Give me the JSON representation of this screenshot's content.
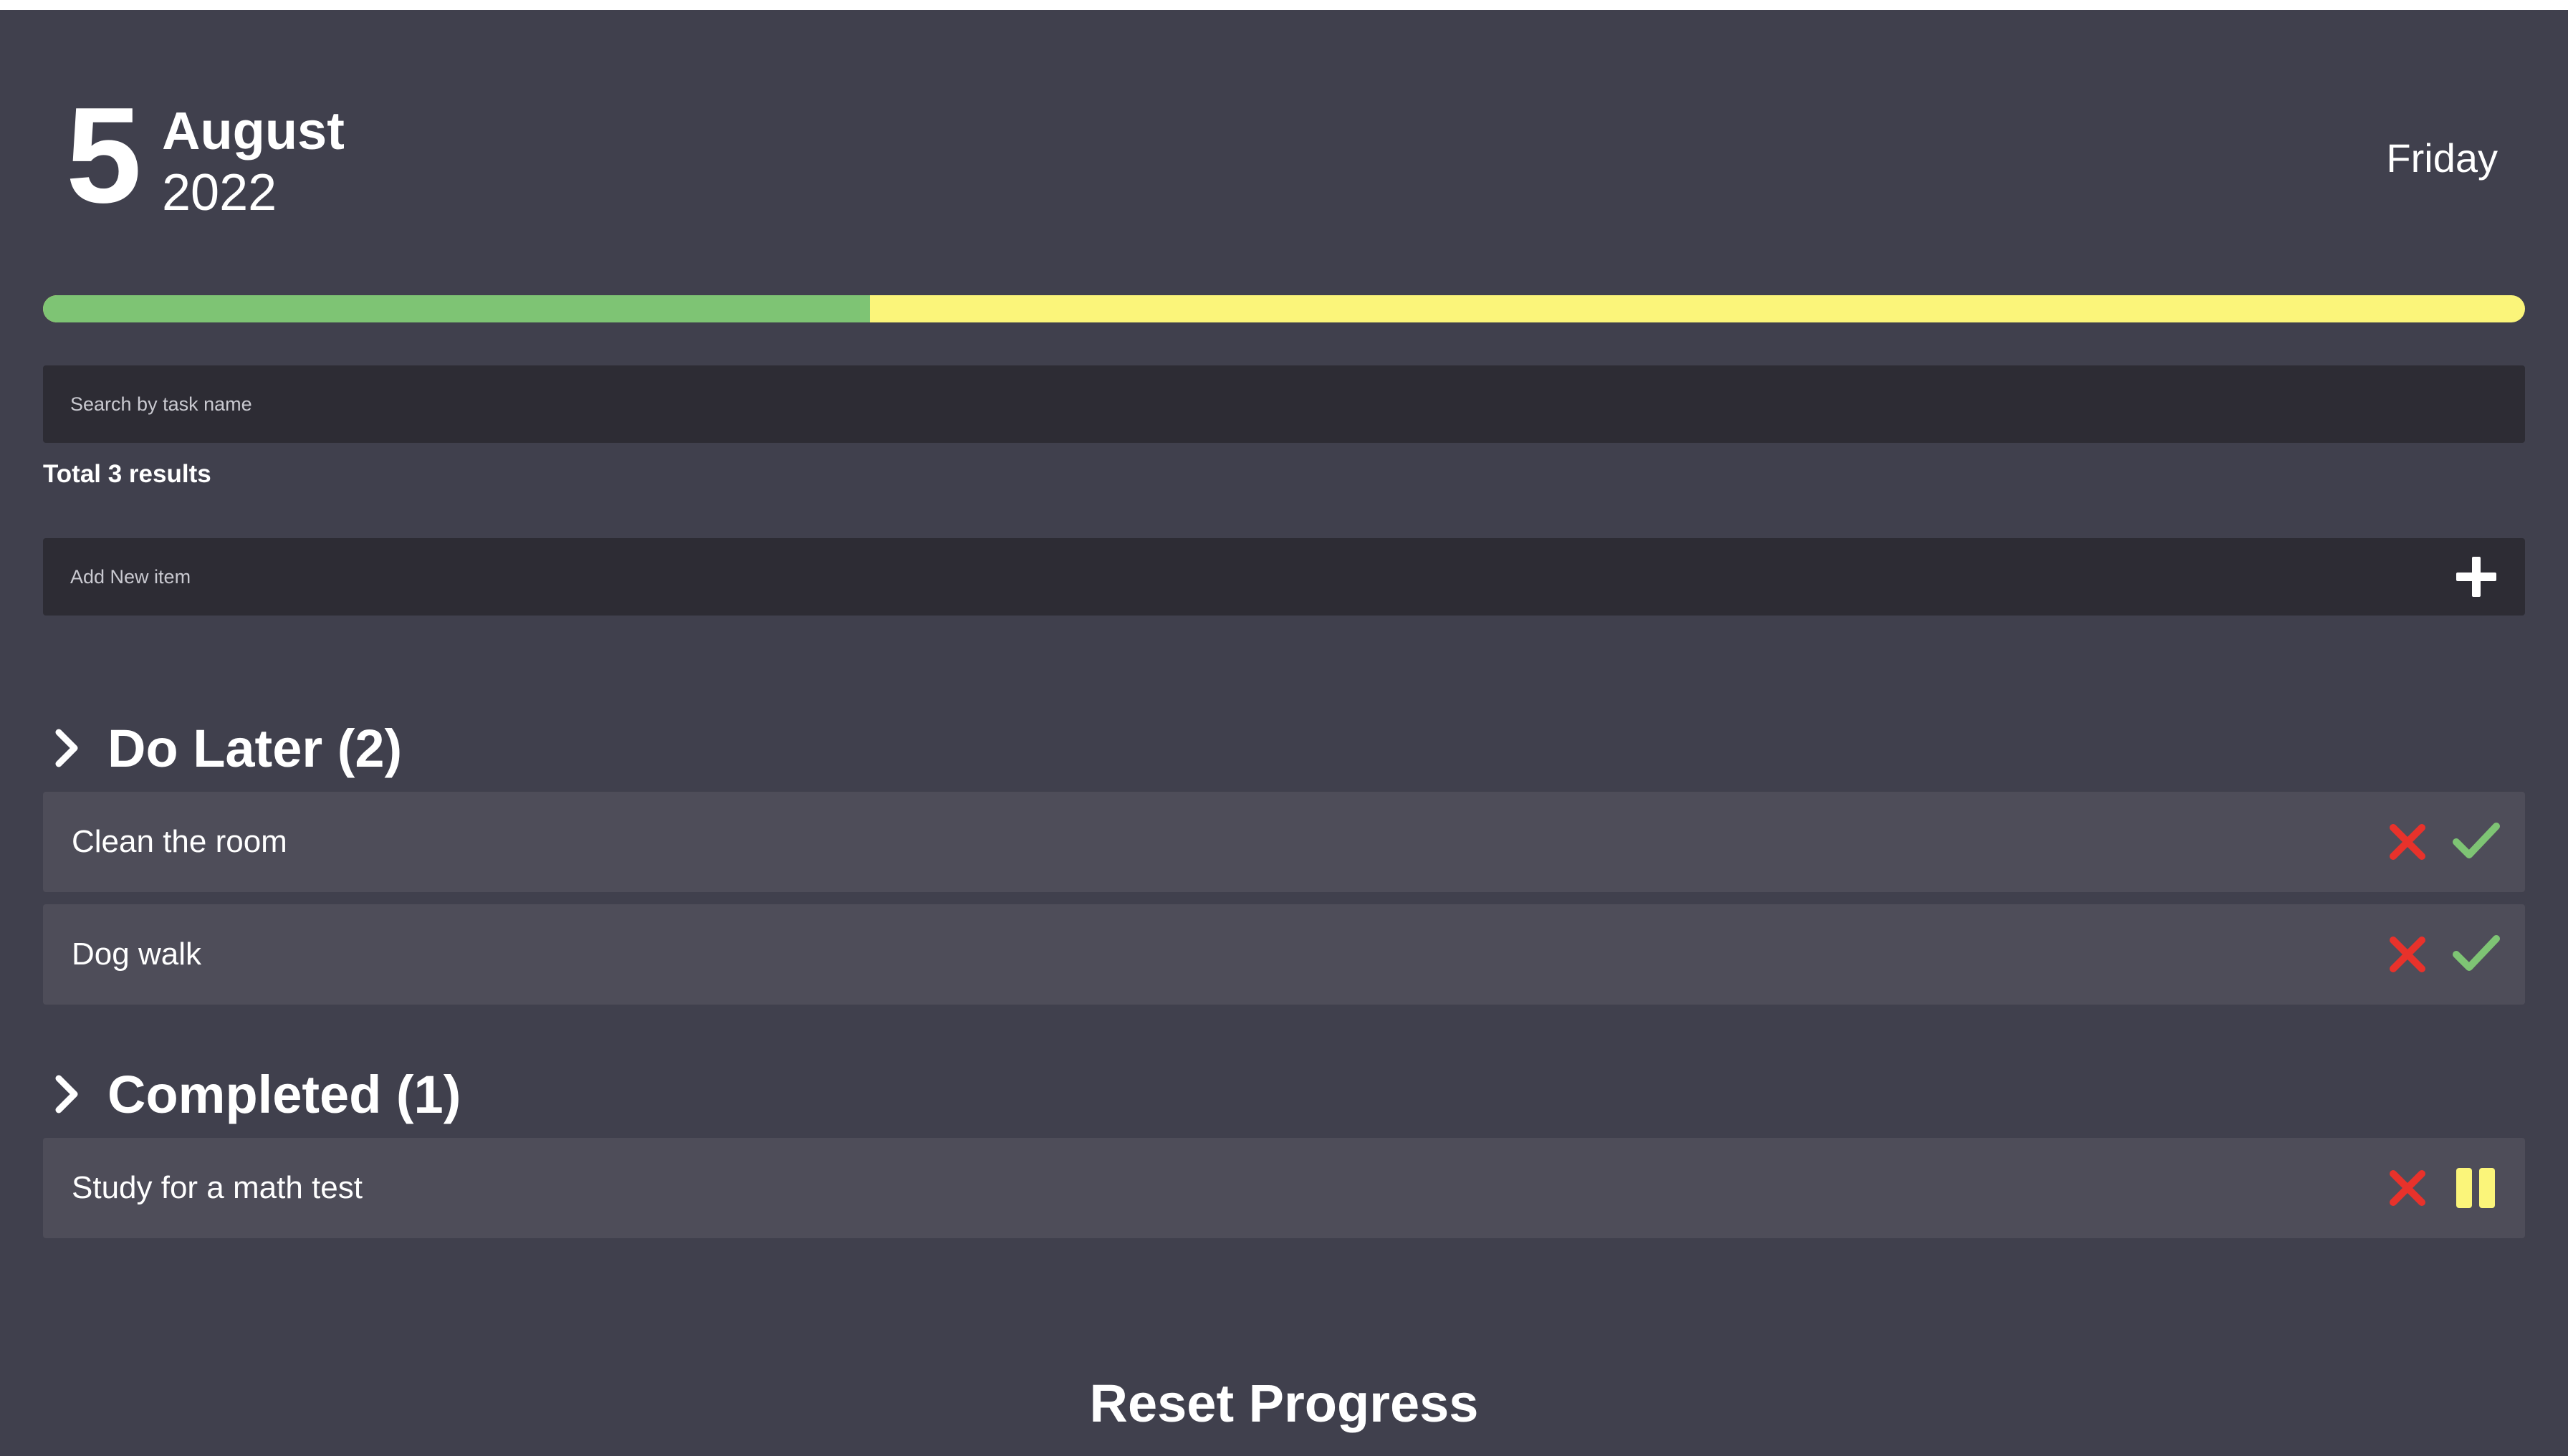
{
  "header": {
    "day": "5",
    "month": "August",
    "year": "2022",
    "weekday": "Friday"
  },
  "progress": {
    "completed_fraction": 0.333,
    "completed_color": "#7ec474",
    "remaining_color": "#fbf57a"
  },
  "search": {
    "placeholder": "Search by task name",
    "value": ""
  },
  "results": {
    "label": "Total 3 results"
  },
  "add_item": {
    "placeholder": "Add New item",
    "value": "",
    "button_icon": "plus-icon"
  },
  "sections": {
    "do_later": {
      "title": "Do Later (2)",
      "icon": "chevron-right-icon",
      "tasks": [
        {
          "label": "Clean the room",
          "actions": [
            "delete-icon",
            "check-icon"
          ]
        },
        {
          "label": "Dog walk",
          "actions": [
            "delete-icon",
            "check-icon"
          ]
        }
      ]
    },
    "completed": {
      "title": "Completed (1)",
      "icon": "chevron-right-icon",
      "tasks": [
        {
          "label": "Study for a math test",
          "actions": [
            "delete-icon",
            "pause-icon"
          ]
        }
      ]
    }
  },
  "reset": {
    "label": "Reset Progress"
  },
  "colors": {
    "background": "#40404d",
    "input_background": "#2d2c34",
    "task_background": "#4e4d59",
    "delete": "#e8322b",
    "check": "#7ec474",
    "pause": "#fbf57a"
  }
}
